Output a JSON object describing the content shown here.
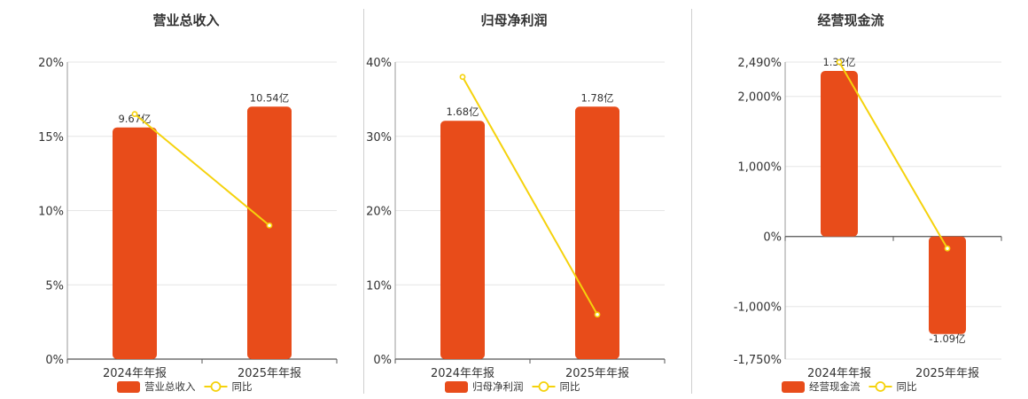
{
  "charts": [
    {
      "title": "营业总收入",
      "type": "bar+line",
      "categories": [
        "2024年年报",
        "2025年年报"
      ],
      "bar_series": {
        "name": "营业总收入",
        "values": [
          9.67,
          10.54
        ],
        "labels": [
          "9.67亿",
          "10.54亿"
        ],
        "color": "#e84c1a"
      },
      "line_series": {
        "name": "同比",
        "values": [
          16.5,
          9.0
        ],
        "color": "#f5d20c"
      },
      "y_ticks": [
        "20%",
        "15%",
        "10%",
        "5%",
        "0%"
      ],
      "ylim": [
        0,
        20
      ]
    },
    {
      "title": "归母净利润",
      "type": "bar+line",
      "categories": [
        "2024年年报",
        "2025年年报"
      ],
      "bar_series": {
        "name": "归母净利润",
        "values": [
          1.68,
          1.78
        ],
        "labels": [
          "1.68亿",
          "1.78亿"
        ],
        "color": "#e84c1a"
      },
      "line_series": {
        "name": "同比",
        "values": [
          38.0,
          6.0
        ],
        "color": "#f5d20c"
      },
      "y_ticks": [
        "40%",
        "30%",
        "20%",
        "10%",
        "0%"
      ],
      "ylim": [
        0,
        40
      ]
    },
    {
      "title": "经营现金流",
      "type": "bar+line",
      "categories": [
        "2024年年报",
        "2025年年报"
      ],
      "bar_series": {
        "name": "经营现金流",
        "values": [
          1.32,
          -1.09
        ],
        "labels": [
          "1.32亿",
          "-1.09亿"
        ],
        "color": "#e84c1a"
      },
      "line_series": {
        "name": "同比",
        "values": [
          2490,
          -170
        ],
        "color": "#f5d20c"
      },
      "y_ticks": [
        "2,490%",
        "2,000%",
        "1,000%",
        "0%",
        "-1,000%",
        "-1,750%"
      ],
      "ylim": [
        -1750,
        2490
      ]
    }
  ],
  "chart_data": [
    {
      "type": "bar",
      "title": "营业总收入",
      "categories": [
        "2024年年报",
        "2025年年报"
      ],
      "series": [
        {
          "name": "营业总收入",
          "values": [
            9.67,
            10.54
          ],
          "unit": "亿"
        },
        {
          "name": "同比",
          "type": "line",
          "values": [
            16.5,
            9.0
          ],
          "unit": "%"
        }
      ],
      "ylim": [
        0,
        20
      ],
      "grid": true,
      "legend": "bottom"
    },
    {
      "type": "bar",
      "title": "归母净利润",
      "categories": [
        "2024年年报",
        "2025年年报"
      ],
      "series": [
        {
          "name": "归母净利润",
          "values": [
            1.68,
            1.78
          ],
          "unit": "亿"
        },
        {
          "name": "同比",
          "type": "line",
          "values": [
            38.0,
            6.0
          ],
          "unit": "%"
        }
      ],
      "ylim": [
        0,
        40
      ],
      "grid": true,
      "legend": "bottom"
    },
    {
      "type": "bar",
      "title": "经营现金流",
      "categories": [
        "2024年年报",
        "2025年年报"
      ],
      "series": [
        {
          "name": "经营现金流",
          "values": [
            1.32,
            -1.09
          ],
          "unit": "亿"
        },
        {
          "name": "同比",
          "type": "line",
          "values": [
            2490,
            -170
          ],
          "unit": "%"
        }
      ],
      "ylim": [
        -1750,
        2490
      ],
      "grid": true,
      "legend": "bottom"
    }
  ]
}
